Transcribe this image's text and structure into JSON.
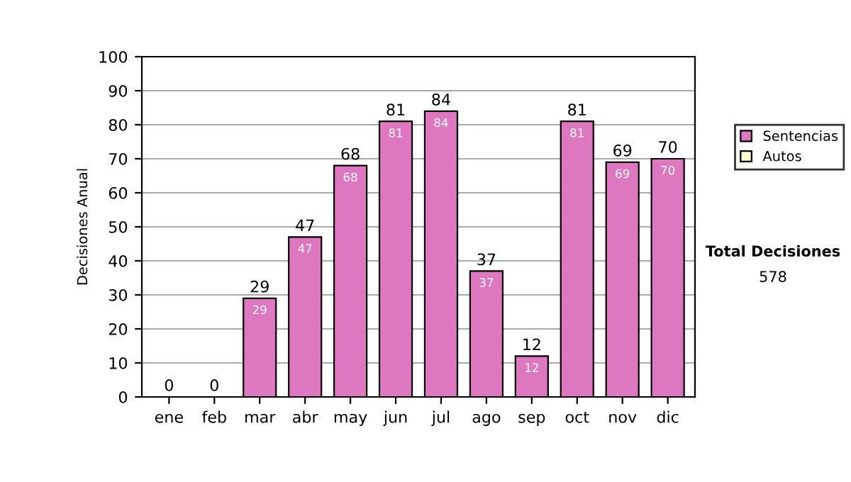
{
  "chart_data": {
    "type": "bar",
    "ylabel": "Decisiones Anual",
    "categories": [
      "ene",
      "feb",
      "mar",
      "abr",
      "may",
      "jun",
      "jul",
      "ago",
      "sep",
      "oct",
      "nov",
      "dic"
    ],
    "stacked": true,
    "series": [
      {
        "name": "Sentencias",
        "color": "#dd77c0",
        "values": [
          0,
          0,
          29,
          47,
          68,
          81,
          84,
          37,
          12,
          81,
          69,
          70
        ],
        "value_labels": [
          null,
          null,
          "29",
          "47",
          "68",
          "81",
          "84",
          "37",
          "12",
          "81",
          "69",
          "70"
        ]
      },
      {
        "name": "Autos",
        "color": "#ffffcc",
        "values": [
          0,
          0,
          0,
          0,
          0,
          0,
          0,
          0,
          0,
          0,
          0,
          0
        ]
      }
    ],
    "totals": [
      "0",
      "0",
      "29",
      "47",
      "68",
      "81",
      "84",
      "37",
      "12",
      "81",
      "69",
      "70"
    ],
    "ylim": [
      0,
      100
    ],
    "yticks": [
      0,
      10,
      20,
      30,
      40,
      50,
      60,
      70,
      80,
      90,
      100
    ],
    "grid": "y",
    "legend": "right",
    "annotations": [
      "Total Decisiones",
      "578"
    ]
  }
}
